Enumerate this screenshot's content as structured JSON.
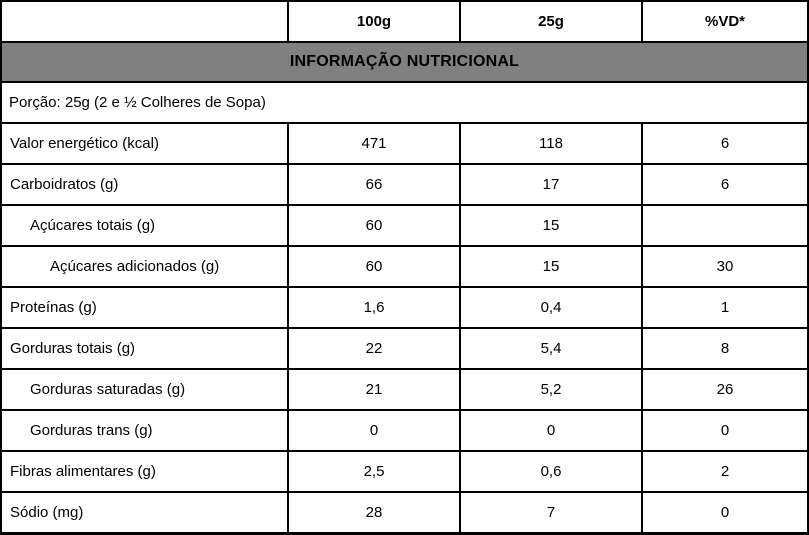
{
  "title": "INFORMAÇÃO NUTRICIONAL",
  "serving": "Porção: 25g (2 e ½ Colheres de Sopa)",
  "colors": {
    "title_band_bg": "#808080",
    "border": "#000000",
    "text": "#000000",
    "background": "#ffffff"
  },
  "table": {
    "columns": [
      "",
      "100g",
      "25g",
      "%VD*"
    ],
    "rows": [
      {
        "label": "Valor energético (kcal)",
        "indent": 0,
        "per100g": "471",
        "per25g": "118",
        "vd": "6"
      },
      {
        "label": "Carboidratos (g)",
        "indent": 0,
        "per100g": "66",
        "per25g": "17",
        "vd": "6"
      },
      {
        "label": "Açúcares totais (g)",
        "indent": 1,
        "per100g": "60",
        "per25g": "15",
        "vd": ""
      },
      {
        "label": "Açúcares adicionados (g)",
        "indent": 2,
        "per100g": "60",
        "per25g": "15",
        "vd": "30"
      },
      {
        "label": "Proteínas (g)",
        "indent": 0,
        "per100g": "1,6",
        "per25g": "0,4",
        "vd": "1"
      },
      {
        "label": "Gorduras totais (g)",
        "indent": 0,
        "per100g": "22",
        "per25g": "5,4",
        "vd": "8"
      },
      {
        "label": "Gorduras saturadas (g)",
        "indent": 1,
        "per100g": "21",
        "per25g": "5,2",
        "vd": "26"
      },
      {
        "label": "Gorduras trans (g)",
        "indent": 1,
        "per100g": "0",
        "per25g": "0",
        "vd": "0"
      },
      {
        "label": "Fibras alimentares (g)",
        "indent": 0,
        "per100g": "2,5",
        "per25g": "0,6",
        "vd": "2"
      },
      {
        "label": "Sódio (mg)",
        "indent": 0,
        "per100g": "28",
        "per25g": "7",
        "vd": "0"
      }
    ]
  }
}
